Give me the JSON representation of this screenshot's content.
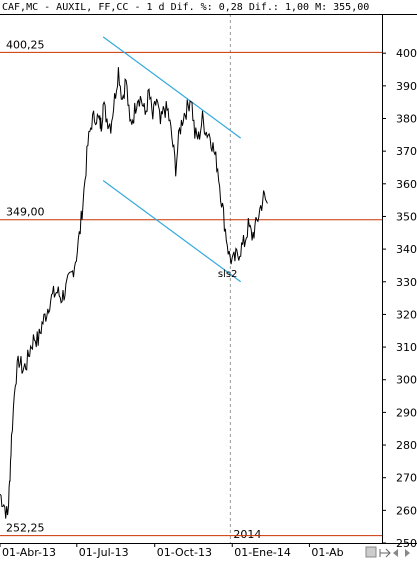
{
  "header": {
    "text": "CAF,MC - AUXIL, FF,CC -  1 d Dif. %: 0,28 Dif.: 1,00 M: 355,00"
  },
  "chart_data": {
    "type": "line",
    "title": "CAF,MC - AUXIL, FF,CC",
    "interval": "1 d",
    "yaxis": {
      "position": "right",
      "ylim": [
        250,
        412
      ],
      "ticks": [
        250,
        260,
        270,
        280,
        290,
        300,
        310,
        320,
        330,
        340,
        350,
        360,
        370,
        380,
        390,
        400
      ]
    },
    "xaxis": {
      "ticks": [
        "01-Abr-13",
        "01-Jul-13",
        "01-Oct-13",
        "01-Ene-14",
        "01-Ab"
      ],
      "year_marker": "2014"
    },
    "grid": false,
    "levels": [
      {
        "label": "400,25",
        "value": 400.25,
        "color": "#cc3300"
      },
      {
        "label": "349,00",
        "value": 349.0,
        "color": "#cc3300"
      },
      {
        "label": "252,25",
        "value": 252.25,
        "color": "#cc3300"
      }
    ],
    "channel": {
      "color": "#33aadd",
      "upper": {
        "x": [
          0.27,
          0.63
        ],
        "y": [
          405,
          374
        ]
      },
      "lower": {
        "x": [
          0.27,
          0.63
        ],
        "y": [
          361,
          330
        ]
      }
    },
    "annotation": {
      "text": "sls2",
      "x": 0.586,
      "y": 333
    },
    "series": [
      {
        "x": [
          0.0,
          0.01,
          0.02,
          0.025,
          0.03,
          0.04,
          0.05,
          0.06,
          0.07,
          0.08,
          0.09,
          0.1,
          0.11,
          0.12,
          0.13,
          0.14,
          0.15,
          0.16,
          0.17,
          0.18,
          0.19,
          0.2,
          0.21,
          0.22,
          0.23,
          0.24,
          0.25,
          0.26,
          0.265,
          0.27,
          0.28,
          0.29,
          0.3,
          0.31,
          0.32,
          0.33,
          0.34,
          0.35,
          0.36,
          0.37,
          0.38,
          0.39,
          0.4,
          0.41,
          0.42,
          0.43,
          0.44,
          0.45,
          0.46,
          0.47,
          0.48,
          0.49,
          0.5,
          0.51,
          0.52,
          0.53,
          0.54,
          0.55,
          0.56,
          0.57,
          0.58,
          0.59,
          0.6,
          0.61,
          0.62,
          0.63,
          0.64,
          0.65,
          0.66,
          0.67,
          0.68,
          0.69,
          0.7
        ],
        "y": [
          265,
          262,
          258,
          268,
          282,
          300,
          306,
          303,
          305,
          310,
          313,
          312,
          317,
          320,
          324,
          326,
          327,
          325,
          327,
          330,
          333,
          338,
          346,
          358,
          372,
          379,
          381,
          379,
          378,
          384,
          380,
          378,
          386,
          395,
          386,
          392,
          378,
          381,
          387,
          386,
          381,
          388,
          380,
          386,
          378,
          383,
          382,
          374,
          365,
          376,
          381,
          383,
          387,
          375,
          374,
          380,
          376,
          375,
          370,
          365,
          355,
          346,
          338,
          336,
          338,
          340,
          342,
          347,
          344,
          347,
          352,
          356,
          354
        ]
      }
    ]
  }
}
